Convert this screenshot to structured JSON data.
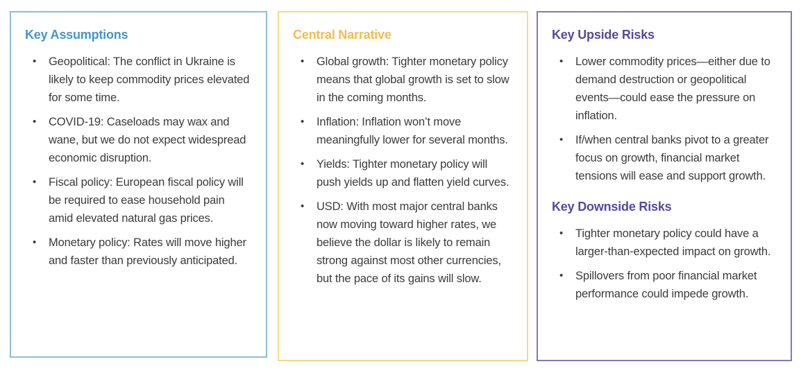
{
  "bullet_char": "•",
  "colors": {
    "background": "#FFFFFF",
    "body_text": "#3B3B3B",
    "blue_accent": "#4594CB",
    "blue_border": "#8BBCDC",
    "gold_accent": "#F3BC4D",
    "gold_border": "#F6D98A",
    "purple_accent": "#5549A2",
    "purple_border": "#8278BC"
  },
  "panels": [
    {
      "id": "key-assumptions",
      "accent": "#4594CB",
      "border": "#8BBCDC",
      "sections": [
        {
          "heading": "Key Assumptions",
          "bullets": [
            "Geopolitical: The conflict in Ukraine is likely to keep commodity prices elevated for some time.",
            "COVID-19: Caseloads may wax and wane, but we do not expect widespread economic disruption.",
            "Fiscal policy: European fiscal policy will be required to ease household pain amid elevated natural gas prices.",
            "Monetary policy: Rates will move higher and faster than previously anticipated."
          ]
        }
      ]
    },
    {
      "id": "central-narrative",
      "accent": "#F3BC4D",
      "border": "#F6D98A",
      "sections": [
        {
          "heading": "Central Narrative",
          "bullets": [
            "Global growth: Tighter monetary policy means that global growth is set to slow in the coming months.",
            "Inflation: Inflation won’t move meaningfully lower for several months.",
            "Yields: Tighter monetary policy will push yields up and flatten yield curves.",
            "USD: With most major central banks now moving toward higher rates, we believe the dollar is likely to remain strong against most other currencies, but the pace of its gains will slow."
          ]
        }
      ]
    },
    {
      "id": "key-risks",
      "accent": "#5549A2",
      "border": "#8278BC",
      "sections": [
        {
          "heading": "Key Upside Risks",
          "bullets": [
            "Lower commodity prices—either due to demand destruction or geopolitical events—could ease the pressure on inflation.",
            "If/when central banks pivot to a greater focus on growth, financial market tensions will ease and support growth."
          ]
        },
        {
          "heading": "Key Downside Risks",
          "bullets": [
            "Tighter monetary policy could have a larger-than-expected impact on growth.",
            "Spillovers from poor financial market performance could impede growth."
          ]
        }
      ]
    }
  ]
}
